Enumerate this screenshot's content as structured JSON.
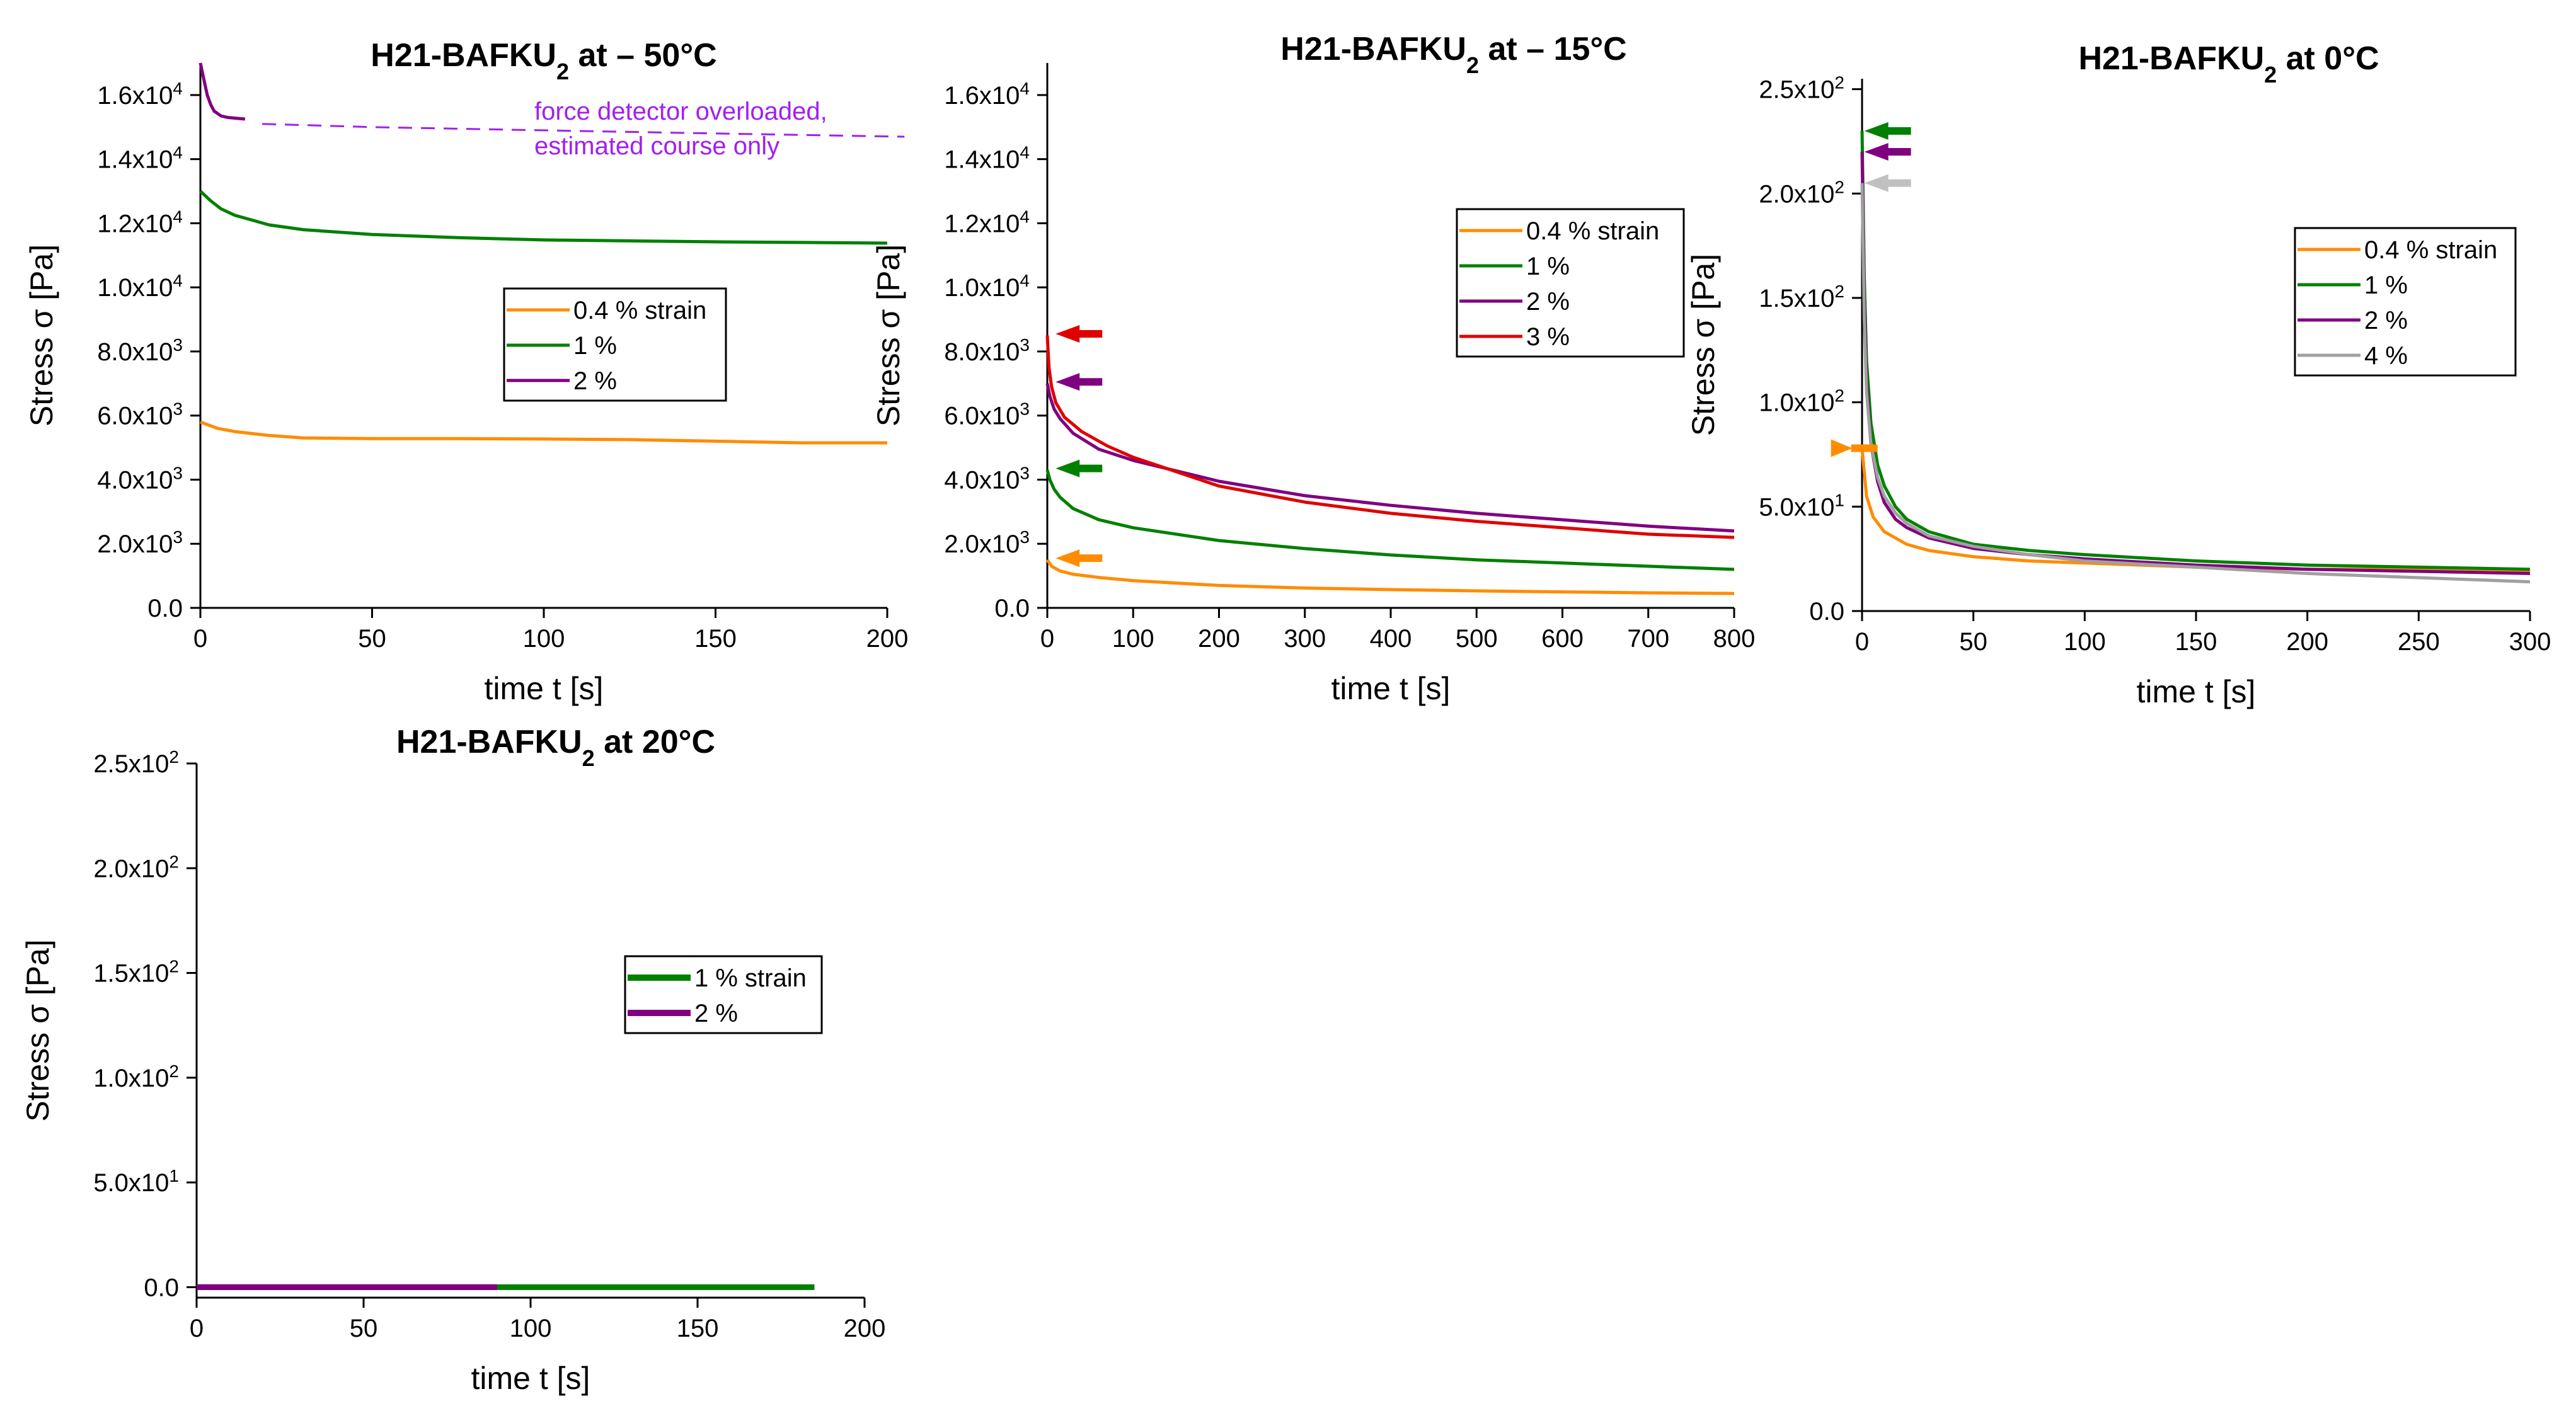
{
  "chart_data": [
    {
      "type": "line",
      "title": "H21-BAFKU",
      "title_sub": "2",
      "title_suffix": "  at – 50°C",
      "xlabel": "time t [s]",
      "ylabel": "Stress σ [Pa]",
      "xlim": [
        0,
        200
      ],
      "ylim": [
        0,
        17000
      ],
      "x_ticks": [
        0,
        50,
        100,
        150,
        200
      ],
      "x_tick_labels": [
        "0",
        "50",
        "100",
        "150",
        "200"
      ],
      "y_ticks": [
        0,
        2000,
        4000,
        6000,
        8000,
        10000,
        12000,
        14000,
        16000
      ],
      "y_tick_labels": [
        {
          "text": "0.0"
        },
        {
          "mant": "2.0x10",
          "exp": "3"
        },
        {
          "mant": "4.0x10",
          "exp": "3"
        },
        {
          "mant": "6.0x10",
          "exp": "3"
        },
        {
          "mant": "8.0x10",
          "exp": "3"
        },
        {
          "mant": "1.0x10",
          "exp": "4"
        },
        {
          "mant": "1.2x10",
          "exp": "4"
        },
        {
          "mant": "1.4x10",
          "exp": "4"
        },
        {
          "mant": "1.6x10",
          "exp": "4"
        }
      ],
      "legend": {
        "position": "center-right",
        "entries": [
          "0.4 % strain",
          "1 %",
          "2 %"
        ]
      },
      "series": [
        {
          "name": "0.4 % strain",
          "color": "#ff8c00",
          "x": [
            0,
            5,
            10,
            20,
            30,
            50,
            75,
            100,
            125,
            150,
            175,
            200
          ],
          "y": [
            5800,
            5600,
            5500,
            5380,
            5300,
            5280,
            5280,
            5270,
            5250,
            5200,
            5150,
            5150
          ]
        },
        {
          "name": "1 %",
          "color": "#008000",
          "x": [
            0,
            3,
            6,
            10,
            20,
            30,
            50,
            75,
            100,
            125,
            150,
            175,
            200
          ],
          "y": [
            13000,
            12700,
            12450,
            12250,
            11950,
            11800,
            11650,
            11550,
            11480,
            11450,
            11420,
            11400,
            11380
          ]
        },
        {
          "name": "2 %",
          "color": "#800080",
          "x": [
            0,
            1,
            2,
            3,
            4,
            6,
            8,
            10,
            13
          ],
          "y": [
            17000,
            16500,
            16000,
            15700,
            15500,
            15350,
            15300,
            15280,
            15250
          ]
        },
        {
          "name": "2 % estimated",
          "color": "#a020f0",
          "dashed": true,
          "x": [
            18,
            50,
            100,
            150,
            205
          ],
          "y": [
            15100,
            15000,
            14900,
            14800,
            14700
          ]
        }
      ],
      "annotations": [
        "force detector overloaded,",
        "estimated course only"
      ]
    },
    {
      "type": "line",
      "title": "H21-BAFKU",
      "title_sub": "2",
      "title_suffix": "  at – 15°C",
      "xlabel": "time t [s]",
      "ylabel": "Stress σ [Pa]",
      "xlim": [
        0,
        800
      ],
      "ylim": [
        0,
        17000
      ],
      "x_ticks": [
        0,
        100,
        200,
        300,
        400,
        500,
        600,
        700,
        800
      ],
      "x_tick_labels": [
        "0",
        "100",
        "200",
        "300",
        "400",
        "500",
        "600",
        "700",
        "800"
      ],
      "y_ticks": [
        0,
        2000,
        4000,
        6000,
        8000,
        10000,
        12000,
        14000,
        16000
      ],
      "y_tick_labels": [
        {
          "text": "0.0"
        },
        {
          "mant": "2.0x10",
          "exp": "3"
        },
        {
          "mant": "4.0x10",
          "exp": "3"
        },
        {
          "mant": "6.0x10",
          "exp": "3"
        },
        {
          "mant": "8.0x10",
          "exp": "3"
        },
        {
          "mant": "1.0x10",
          "exp": "4"
        },
        {
          "mant": "1.2x10",
          "exp": "4"
        },
        {
          "mant": "1.4x10",
          "exp": "4"
        },
        {
          "mant": "1.6x10",
          "exp": "4"
        }
      ],
      "legend": {
        "position": "top-right",
        "entries": [
          "0.4 % strain",
          "1 %",
          "2 %",
          "3 %"
        ]
      },
      "series": [
        {
          "name": "0.4 % strain",
          "color": "#ff8c00",
          "x": [
            0,
            5,
            15,
            30,
            60,
            100,
            200,
            300,
            400,
            500,
            600,
            700,
            800
          ],
          "y": [
            1500,
            1300,
            1150,
            1050,
            950,
            850,
            700,
            620,
            570,
            530,
            500,
            470,
            450
          ]
        },
        {
          "name": "1 %",
          "color": "#008000",
          "x": [
            0,
            3,
            8,
            15,
            30,
            60,
            100,
            200,
            300,
            400,
            500,
            600,
            700,
            800
          ],
          "y": [
            4300,
            4000,
            3700,
            3450,
            3100,
            2750,
            2500,
            2100,
            1850,
            1650,
            1500,
            1400,
            1300,
            1200
          ]
        },
        {
          "name": "2 %",
          "color": "#800080",
          "x": [
            0,
            3,
            8,
            15,
            30,
            60,
            100,
            200,
            300,
            400,
            500,
            600,
            700,
            800
          ],
          "y": [
            7000,
            6600,
            6200,
            5900,
            5450,
            4950,
            4600,
            3950,
            3500,
            3200,
            2950,
            2750,
            2550,
            2400
          ]
        },
        {
          "name": "3 %",
          "color": "#e00000",
          "x": [
            0,
            2,
            5,
            10,
            20,
            40,
            70,
            100,
            200,
            300,
            400,
            500,
            600,
            700,
            800
          ],
          "y": [
            8500,
            7500,
            6900,
            6400,
            5950,
            5500,
            5050,
            4700,
            3800,
            3300,
            2950,
            2700,
            2500,
            2300,
            2200
          ]
        }
      ],
      "markers": [
        {
          "series": "0.4 % strain",
          "color": "#ff8c00",
          "x": 20,
          "y": 1550
        },
        {
          "series": "1 %",
          "color": "#008000",
          "x": 20,
          "y": 4350
        },
        {
          "series": "2 %",
          "color": "#800080",
          "x": 20,
          "y": 7050
        },
        {
          "series": "3 %",
          "color": "#e00000",
          "x": 20,
          "y": 8550
        }
      ]
    },
    {
      "type": "line",
      "title": "H21-BAFKU",
      "title_sub": "2",
      "title_suffix": "  at 0°C",
      "xlabel": "time t [s]",
      "ylabel": "Stress σ [Pa]",
      "xlim": [
        0,
        300
      ],
      "ylim": [
        0,
        255
      ],
      "x_ticks": [
        0,
        50,
        100,
        150,
        200,
        250,
        300
      ],
      "x_tick_labels": [
        "0",
        "50",
        "100",
        "150",
        "200",
        "250",
        "300"
      ],
      "y_ticks": [
        0,
        50,
        100,
        150,
        200,
        250
      ],
      "y_tick_labels": [
        {
          "text": "0.0"
        },
        {
          "mant": "5.0x10",
          "exp": "1"
        },
        {
          "mant": "1.0x10",
          "exp": "2"
        },
        {
          "mant": "1.5x10",
          "exp": "2"
        },
        {
          "mant": "2.0x10",
          "exp": "2"
        },
        {
          "mant": "2.5x10",
          "exp": "2"
        }
      ],
      "legend": {
        "position": "top-right",
        "entries": [
          "0.4 % strain",
          "1 %",
          "2 %",
          "4 %"
        ]
      },
      "series": [
        {
          "name": "0.4 % strain",
          "color": "#ff8c00",
          "x": [
            0,
            2,
            5,
            10,
            20,
            30,
            50,
            75,
            100,
            150,
            200,
            250,
            300
          ],
          "y": [
            78,
            55,
            45,
            38,
            32,
            29,
            26,
            24,
            23,
            21,
            20,
            20,
            19
          ]
        },
        {
          "name": "1 %",
          "color": "#008000",
          "x": [
            0,
            1,
            2,
            4,
            7,
            10,
            15,
            20,
            30,
            50,
            75,
            100,
            150,
            200,
            250,
            300
          ],
          "y": [
            230,
            160,
            120,
            90,
            70,
            60,
            50,
            44,
            38,
            32,
            29,
            27,
            24,
            22,
            21,
            20
          ]
        },
        {
          "name": "2 %",
          "color": "#800080",
          "x": [
            0,
            1,
            2,
            4,
            7,
            10,
            15,
            20,
            30,
            50,
            75,
            100,
            150,
            200,
            250,
            300
          ],
          "y": [
            220,
            150,
            110,
            80,
            62,
            52,
            44,
            40,
            35,
            30,
            27,
            25,
            22,
            20,
            19,
            18
          ]
        },
        {
          "name": "4 %",
          "color": "#a0a0a0",
          "x": [
            0,
            1,
            2,
            4,
            7,
            10,
            15,
            20,
            30,
            50,
            75,
            100,
            150,
            200,
            250,
            300
          ],
          "y": [
            205,
            140,
            105,
            80,
            64,
            55,
            47,
            42,
            36,
            31,
            27,
            24,
            21,
            18,
            16,
            14
          ]
        }
      ],
      "markers": [
        {
          "series": "0.4 % strain",
          "color": "#ff8c00",
          "x": -10,
          "y": 78,
          "dir": "right"
        },
        {
          "series": "1 %",
          "color": "#008000",
          "x": 5,
          "y": 230
        },
        {
          "series": "2 %",
          "color": "#800080",
          "x": 5,
          "y": 220
        },
        {
          "series": "4 %",
          "color": "#c0c0c0",
          "x": 5,
          "y": 205
        }
      ]
    },
    {
      "type": "line",
      "title": "H21-BAFKU",
      "title_sub": "2",
      "title_suffix": " at 20°C",
      "xlabel": "time t [s]",
      "ylabel": "Stress σ [Pa]",
      "xlim": [
        0,
        200
      ],
      "ylim": [
        -5,
        250
      ],
      "x_ticks": [
        0,
        50,
        100,
        150,
        200
      ],
      "x_tick_labels": [
        "0",
        "50",
        "100",
        "150",
        "200"
      ],
      "y_ticks": [
        0,
        50,
        100,
        150,
        200,
        250
      ],
      "y_tick_labels": [
        {
          "text": "0.0"
        },
        {
          "mant": "5.0x10",
          "exp": "1"
        },
        {
          "mant": "1.0x10",
          "exp": "2"
        },
        {
          "mant": "1.5x10",
          "exp": "2"
        },
        {
          "mant": "2.0x10",
          "exp": "2"
        },
        {
          "mant": "2.5x10",
          "exp": "2"
        }
      ],
      "legend": {
        "position": "center-right",
        "entries": [
          "1 % strain",
          "2 %"
        ]
      },
      "series": [
        {
          "name": "1 % strain",
          "color": "#008000",
          "thick": true,
          "x": [
            0,
            185
          ],
          "y": [
            0,
            0
          ]
        },
        {
          "name": "2 %",
          "color": "#800080",
          "thick": true,
          "x": [
            0,
            90
          ],
          "y": [
            0,
            0
          ]
        }
      ]
    }
  ]
}
